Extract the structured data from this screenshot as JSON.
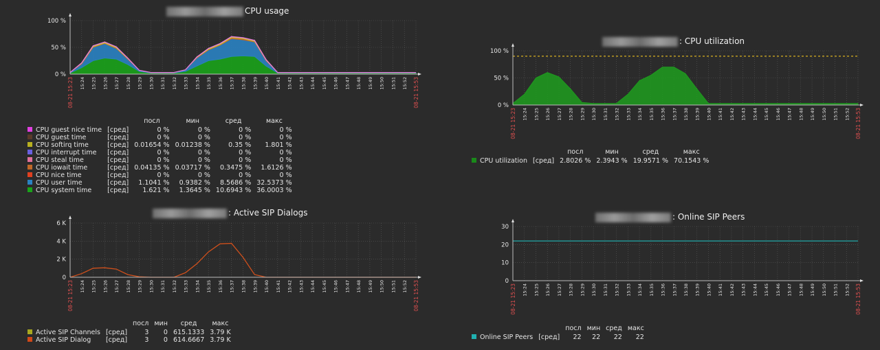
{
  "legend_headers": {
    "last": "посл",
    "min": "мин",
    "avg": "сред",
    "max": "макс"
  },
  "func_label": "[сред]",
  "time_labels": [
    "15:24",
    "15:25",
    "15:26",
    "15:27",
    "15:28",
    "15:29",
    "15:30",
    "15:31",
    "15:32",
    "15:33",
    "15:34",
    "15:35",
    "15:36",
    "15:37",
    "15:38",
    "15:39",
    "15:40",
    "15:41",
    "15:42",
    "15:43",
    "15:44",
    "15:45",
    "15:46",
    "15:47",
    "15:48",
    "15:49",
    "15:50",
    "15:51",
    "15:52"
  ],
  "edge_labels": {
    "start": "08-21 15:23",
    "end": "08-21 15:53"
  },
  "chart_data": [
    {
      "id": "cpu_usage",
      "type": "area",
      "title": "CPU usage",
      "y_ticks": [
        "0 %",
        "50 %",
        "100 %"
      ],
      "ylim": [
        0,
        100
      ],
      "x": [
        "15:23",
        "15:24",
        "15:25",
        "15:26",
        "15:27",
        "15:28",
        "15:29",
        "15:30",
        "15:31",
        "15:32",
        "15:33",
        "15:34",
        "15:35",
        "15:36",
        "15:37",
        "15:38",
        "15:39",
        "15:40",
        "15:41",
        "15:42",
        "15:43",
        "15:44",
        "15:45",
        "15:46",
        "15:47",
        "15:48",
        "15:49",
        "15:50",
        "15:51",
        "15:52",
        "15:53"
      ],
      "series": [
        {
          "name": "CPU system time",
          "color": "#1aa21a",
          "values": [
            2,
            12,
            25,
            30,
            28,
            18,
            5,
            2,
            2,
            2,
            5,
            15,
            25,
            28,
            33,
            34,
            33,
            15,
            2,
            2,
            2,
            2,
            2,
            2,
            2,
            2,
            2,
            2,
            2,
            2,
            2
          ]
        },
        {
          "name": "CPU user time",
          "color": "#2a82c2",
          "values": [
            1,
            7,
            25,
            27,
            20,
            10,
            2,
            1,
            1,
            1,
            3,
            15,
            20,
            26,
            33,
            30,
            27,
            10,
            1,
            1,
            1,
            1,
            1,
            1,
            1,
            1,
            1,
            1,
            1,
            1,
            1
          ]
        },
        {
          "name": "CPU iowait time",
          "color": "#c86428",
          "values": [
            0,
            1,
            1,
            1,
            1,
            1,
            0,
            0,
            0,
            0,
            0,
            1,
            1,
            1,
            2,
            2,
            1,
            1,
            0,
            0,
            0,
            0,
            0,
            0,
            0,
            0,
            0,
            0,
            0,
            0,
            0
          ]
        },
        {
          "name": "CPU softirq time",
          "color": "#c8c823",
          "values": [
            0,
            1,
            2,
            2,
            2,
            1,
            0,
            0,
            0,
            0,
            0,
            1,
            2,
            2,
            2,
            2,
            2,
            1,
            0,
            0,
            0,
            0,
            0,
            0,
            0,
            0,
            0,
            0,
            0,
            0,
            0
          ]
        },
        {
          "name": "CPU guest nice time",
          "color": "#e03cd0",
          "values": [
            0,
            0,
            0,
            0,
            0,
            0,
            0,
            0,
            0,
            0,
            0,
            0,
            0,
            0,
            0,
            0,
            0,
            0,
            0,
            0,
            0,
            0,
            0,
            0,
            0,
            0,
            0,
            0,
            0,
            0,
            0
          ]
        }
      ],
      "legend": [
        {
          "name": "CPU guest nice time",
          "color": "#e040e0",
          "last": "0 %",
          "min": "0 %",
          "avg": "0 %",
          "max": "0 %"
        },
        {
          "name": "CPU guest time",
          "color": "#5a3a2a",
          "last": "0 %",
          "min": "0 %",
          "avg": "0 %",
          "max": "0 %"
        },
        {
          "name": "CPU softirq time",
          "color": "#b8b020",
          "last": "0.01654 %",
          "min": "0.01238 %",
          "avg": "0.35 %",
          "max": "1.801 %"
        },
        {
          "name": "CPU interrupt time",
          "color": "#6a60e0",
          "last": "0 %",
          "min": "0 %",
          "avg": "0 %",
          "max": "0 %"
        },
        {
          "name": "CPU steal time",
          "color": "#e0709a",
          "last": "0 %",
          "min": "0 %",
          "avg": "0 %",
          "max": "0 %"
        },
        {
          "name": "CPU iowait time",
          "color": "#c06828",
          "last": "0.04135 %",
          "min": "0.03717 %",
          "avg": "0.3475 %",
          "max": "1.6126 %"
        },
        {
          "name": "CPU nice time",
          "color": "#e04020",
          "last": "0 %",
          "min": "0 %",
          "avg": "0 %",
          "max": "0 %"
        },
        {
          "name": "CPU user time",
          "color": "#2a82c2",
          "last": "1.1041 %",
          "min": "0.9382 %",
          "avg": "8.5686 %",
          "max": "32.5373 %"
        },
        {
          "name": "CPU system time",
          "color": "#1aa21a",
          "last": "1.621 %",
          "min": "1.3645 %",
          "avg": "10.6943 %",
          "max": "36.0003 %"
        }
      ]
    },
    {
      "id": "cpu_util",
      "type": "area",
      "title": ": CPU utilization",
      "y_ticks": [
        "0 %",
        "50 %",
        "100 %"
      ],
      "ylim": [
        0,
        100
      ],
      "threshold": 90,
      "x": [
        "15:23",
        "15:24",
        "15:25",
        "15:26",
        "15:27",
        "15:28",
        "15:29",
        "15:30",
        "15:31",
        "15:32",
        "15:33",
        "15:34",
        "15:35",
        "15:36",
        "15:37",
        "15:38",
        "15:39",
        "15:40",
        "15:41",
        "15:42",
        "15:43",
        "15:44",
        "15:45",
        "15:46",
        "15:47",
        "15:48",
        "15:49",
        "15:50",
        "15:51",
        "15:52",
        "15:53"
      ],
      "series": [
        {
          "name": "CPU utilization",
          "color": "#1e9e1e",
          "values": [
            3,
            20,
            50,
            60,
            52,
            30,
            5,
            3,
            3,
            3,
            20,
            45,
            55,
            70,
            70,
            58,
            30,
            3,
            3,
            3,
            3,
            3,
            3,
            3,
            3,
            3,
            3,
            3,
            3,
            3,
            3
          ]
        }
      ],
      "legend": [
        {
          "name": "CPU utilization",
          "color": "#1a8a1a",
          "last": "2.8026 %",
          "min": "2.3943 %",
          "avg": "19.9571 %",
          "max": "70.1543 %"
        }
      ]
    },
    {
      "id": "sip_dialogs",
      "type": "line",
      "title": ": Active SIP Dialogs",
      "y_ticks": [
        "0",
        "2 K",
        "4 K",
        "6 K"
      ],
      "ylim": [
        0,
        6000
      ],
      "x": [
        "15:23",
        "15:24",
        "15:25",
        "15:26",
        "15:27",
        "15:28",
        "15:29",
        "15:30",
        "15:31",
        "15:32",
        "15:33",
        "15:34",
        "15:35",
        "15:36",
        "15:37",
        "15:38",
        "15:39",
        "15:40",
        "15:41",
        "15:42",
        "15:43",
        "15:44",
        "15:45",
        "15:46",
        "15:47",
        "15:48",
        "15:49",
        "15:50",
        "15:51",
        "15:52",
        "15:53"
      ],
      "series": [
        {
          "name": "Active SIP Dialog",
          "color": "#d0501c",
          "values": [
            0,
            400,
            1000,
            1050,
            900,
            300,
            50,
            0,
            0,
            0,
            500,
            1500,
            2800,
            3700,
            3750,
            2200,
            300,
            0,
            0,
            0,
            0,
            0,
            0,
            0,
            0,
            0,
            0,
            0,
            0,
            0,
            0
          ]
        }
      ],
      "legend": [
        {
          "name": "Active SIP Channels",
          "color": "#a8a820",
          "last": "3",
          "min": "0",
          "avg": "615.1333",
          "max": "3.79 K"
        },
        {
          "name": "Active SIP Dialog",
          "color": "#d04818",
          "last": "3",
          "min": "0",
          "avg": "614.6667",
          "max": "3.79 K"
        }
      ]
    },
    {
      "id": "sip_peers",
      "type": "line",
      "title": ": Online SIP Peers",
      "y_ticks": [
        "0",
        "10",
        "20",
        "30"
      ],
      "ylim": [
        0,
        30
      ],
      "x": [
        "15:23",
        "15:24",
        "15:25",
        "15:26",
        "15:27",
        "15:28",
        "15:29",
        "15:30",
        "15:31",
        "15:32",
        "15:33",
        "15:34",
        "15:35",
        "15:36",
        "15:37",
        "15:38",
        "15:39",
        "15:40",
        "15:41",
        "15:42",
        "15:43",
        "15:44",
        "15:45",
        "15:46",
        "15:47",
        "15:48",
        "15:49",
        "15:50",
        "15:51",
        "15:52",
        "15:53"
      ],
      "series": [
        {
          "name": "Online SIP Peers",
          "color": "#22aaaa",
          "values": [
            22,
            22,
            22,
            22,
            22,
            22,
            22,
            22,
            22,
            22,
            22,
            22,
            22,
            22,
            22,
            22,
            22,
            22,
            22,
            22,
            22,
            22,
            22,
            22,
            22,
            22,
            22,
            22,
            22,
            22,
            22
          ]
        }
      ],
      "legend": [
        {
          "name": "Online SIP Peers",
          "color": "#20b0b0",
          "last": "22",
          "min": "22",
          "avg": "22",
          "max": "22"
        }
      ]
    }
  ]
}
